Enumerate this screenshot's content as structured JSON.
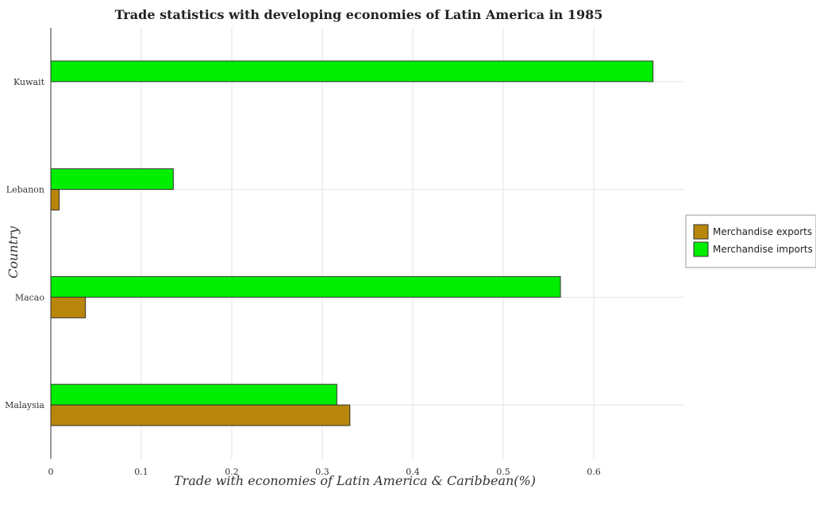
{
  "chart_data": {
    "type": "bar",
    "orientation": "horizontal",
    "title": "Trade statistics with developing economies of Latin America in 1985",
    "xlabel": "Trade with economies of Latin America & Caribbean(%)",
    "ylabel": "Country",
    "categories": [
      "Kuwait",
      "Lebanon",
      "Macao",
      "Malaysia"
    ],
    "series": [
      {
        "name": "Merchandise exports",
        "color": "#b8860b",
        "values": [
          0.0002,
          0.0092,
          0.0383,
          0.3305
        ]
      },
      {
        "name": "Merchandise imports",
        "color": "#00ee00",
        "values": [
          0.6655,
          0.1354,
          0.5632,
          0.3161
        ]
      }
    ],
    "xticks": [
      "0",
      "0.1",
      "0.2",
      "0.3",
      "0.4",
      "0.5",
      "0.6"
    ],
    "xlim": [
      0,
      0.7
    ],
    "grid": true,
    "legend_position": "right"
  }
}
